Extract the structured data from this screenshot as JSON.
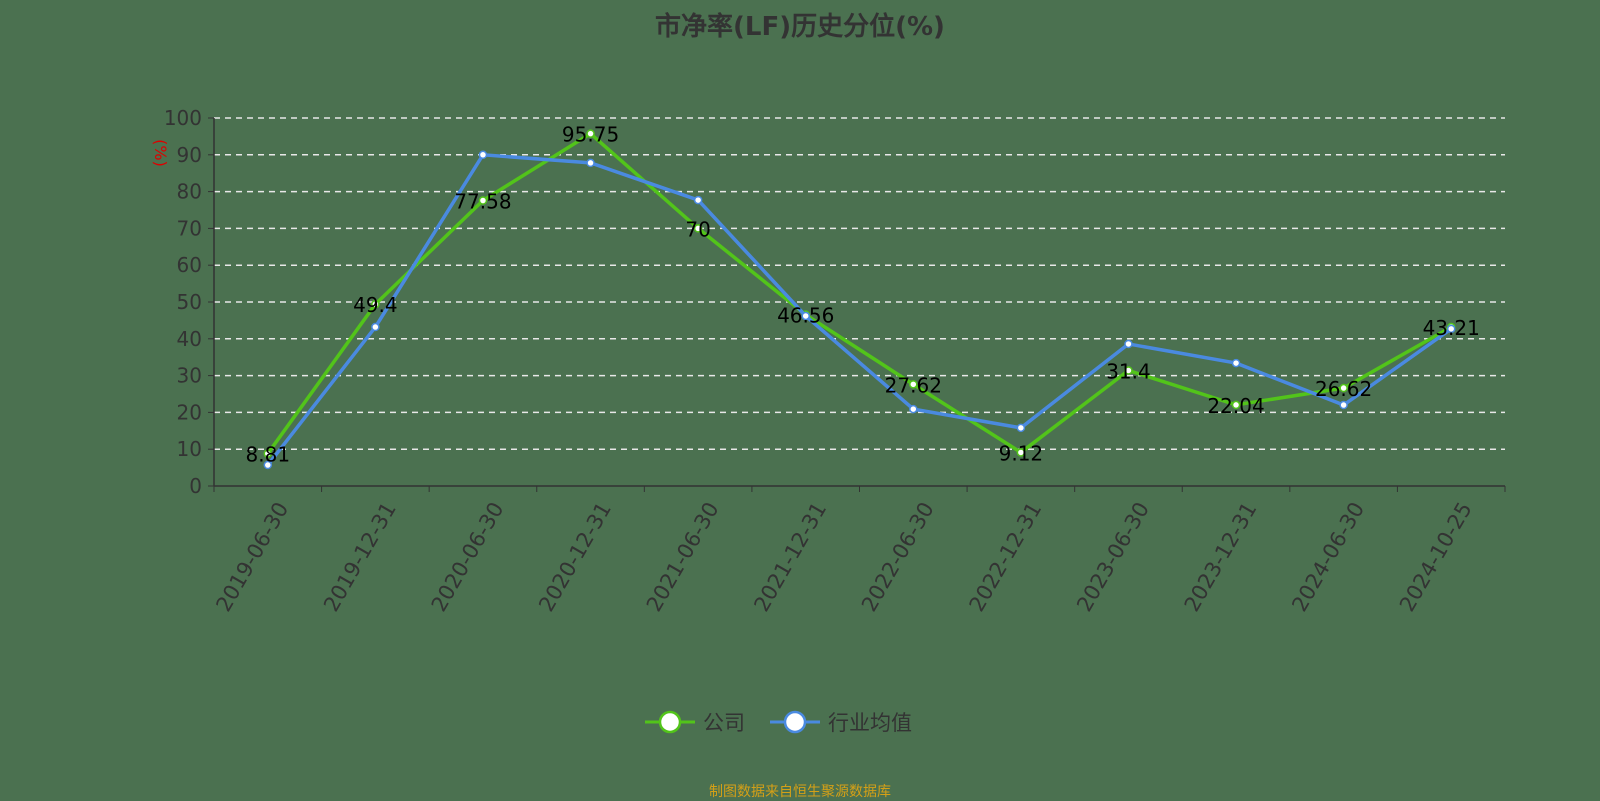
{
  "chart_data": {
    "type": "line",
    "title": "市净率(LF)历史分位(%)",
    "ylabel": "(%)",
    "xlabel": "",
    "ylim": [
      0,
      100
    ],
    "yticks": [
      0,
      10,
      20,
      30,
      40,
      50,
      60,
      70,
      80,
      90,
      100
    ],
    "grid": true,
    "legend_position": "bottom",
    "categories": [
      "2019-06-30",
      "2019-12-31",
      "2020-06-30",
      "2020-12-31",
      "2021-06-30",
      "2021-12-31",
      "2022-06-30",
      "2022-12-31",
      "2023-06-30",
      "2023-12-31",
      "2024-06-30",
      "2024-10-25"
    ],
    "series": [
      {
        "name": "公司",
        "color": "#52c41a",
        "values": [
          8.81,
          49.4,
          77.58,
          95.75,
          70,
          46.56,
          27.62,
          9.12,
          31.4,
          22.04,
          26.62,
          43.21
        ],
        "data_labels": true
      },
      {
        "name": "行业均值",
        "color": "#4a8ae0",
        "values": [
          5.7,
          43.2,
          90.0,
          87.8,
          77.7,
          46.2,
          20.9,
          15.8,
          38.6,
          33.4,
          22.0,
          42.7
        ],
        "data_labels": false
      }
    ]
  },
  "footer": "制图数据来自恒生聚源数据库"
}
